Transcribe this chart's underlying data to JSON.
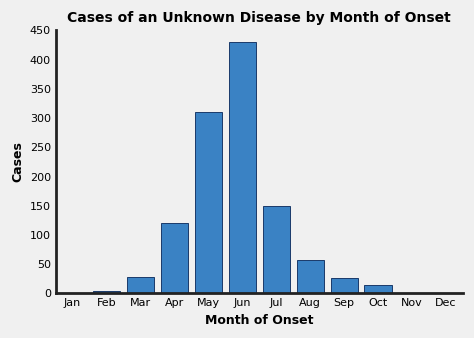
{
  "title": "Cases of an Unknown Disease by Month of Onset",
  "xlabel": "Month of Onset",
  "ylabel": "Cases",
  "months": [
    "Jan",
    "Feb",
    "Mar",
    "Apr",
    "May",
    "Jun",
    "Jul",
    "Aug",
    "Sep",
    "Oct",
    "Nov",
    "Dec"
  ],
  "values": [
    0,
    5,
    28,
    120,
    310,
    430,
    150,
    57,
    27,
    15,
    0,
    0
  ],
  "bar_color": "#3a82c4",
  "bar_edge_color": "#1a3a6a",
  "ylim": [
    0,
    450
  ],
  "yticks": [
    0,
    50,
    100,
    150,
    200,
    250,
    300,
    350,
    400,
    450
  ],
  "title_fontsize": 10,
  "label_fontsize": 9,
  "tick_fontsize": 8,
  "background_color": "#f0f0f0",
  "axes_background": "#f0f0f0"
}
